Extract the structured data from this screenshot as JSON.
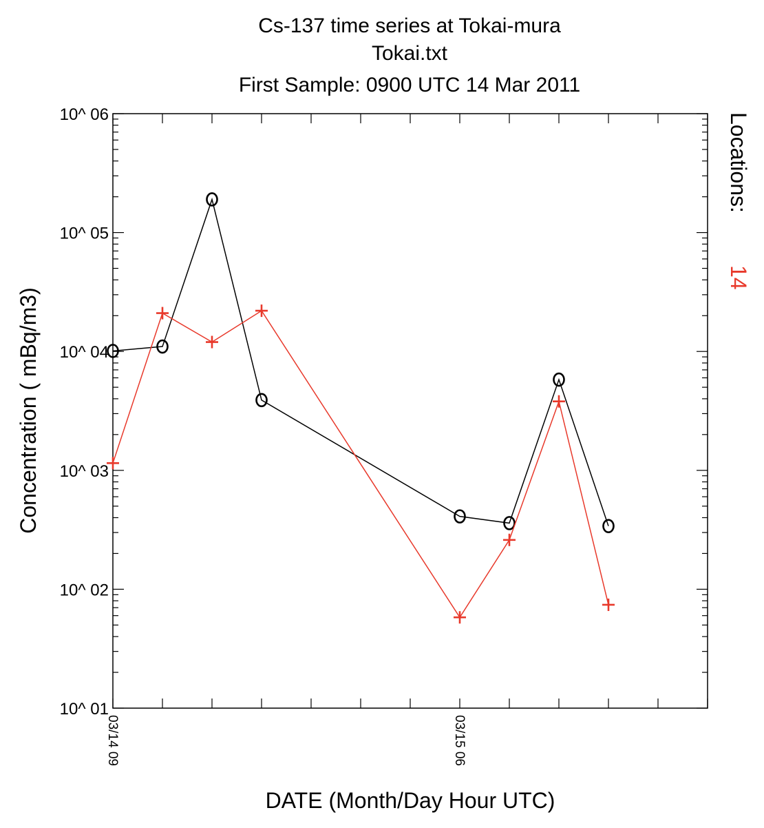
{
  "chart_data": {
    "type": "line",
    "title": "Cs-137 time series at Tokai-mura",
    "subtitle": "Tokai.txt",
    "subtitle2": "First Sample: 0900 UTC 14 Mar 2011",
    "xlabel": "DATE (Month/Day Hour UTC)",
    "ylabel": "Concentration ( mBq/m3)",
    "yscale": "log",
    "ylim": [
      10,
      1000000
    ],
    "ytick_labels": [
      "10^ 01",
      "10^ 02",
      "10^ 03",
      "10^ 04",
      "10^ 05",
      "10^ 06"
    ],
    "xlim": [
      "03/14 09",
      "03/15 21"
    ],
    "xtick_labels": [
      "03/14 09",
      "03/15 06"
    ],
    "x": [
      "03/14 09",
      "03/14 12",
      "03/14 15",
      "03/14 18",
      "03/14 21",
      "03/15 00",
      "03/15 03",
      "03/15 06",
      "03/15 09",
      "03/15 12",
      "03/15 15",
      "03/15 18",
      "03/15 21"
    ],
    "series": [
      {
        "marker": "o",
        "color": "#000000",
        "points": [
          {
            "x": "03/14 09",
            "y": 10100
          },
          {
            "x": "03/14 12",
            "y": 11000
          },
          {
            "x": "03/14 15",
            "y": 190000
          },
          {
            "x": "03/14 18",
            "y": 3900
          },
          {
            "x": "03/15 06",
            "y": 410
          },
          {
            "x": "03/15 09",
            "y": 360
          },
          {
            "x": "03/15 12",
            "y": 5800
          },
          {
            "x": "03/15 15",
            "y": 340
          }
        ]
      },
      {
        "marker": "+",
        "color": "#e8392b",
        "points": [
          {
            "x": "03/14 09",
            "y": 1150
          },
          {
            "x": "03/14 12",
            "y": 21000
          },
          {
            "x": "03/14 15",
            "y": 12000
          },
          {
            "x": "03/14 18",
            "y": 22000
          },
          {
            "x": "03/15 06",
            "y": 58
          },
          {
            "x": "03/15 09",
            "y": 260
          },
          {
            "x": "03/15 12",
            "y": 3800
          },
          {
            "x": "03/15 15",
            "y": 74
          }
        ]
      }
    ],
    "side_label": "Locations:",
    "side_value": "14",
    "side_value_color": "#e8392b",
    "grid": false,
    "legend": "none"
  }
}
